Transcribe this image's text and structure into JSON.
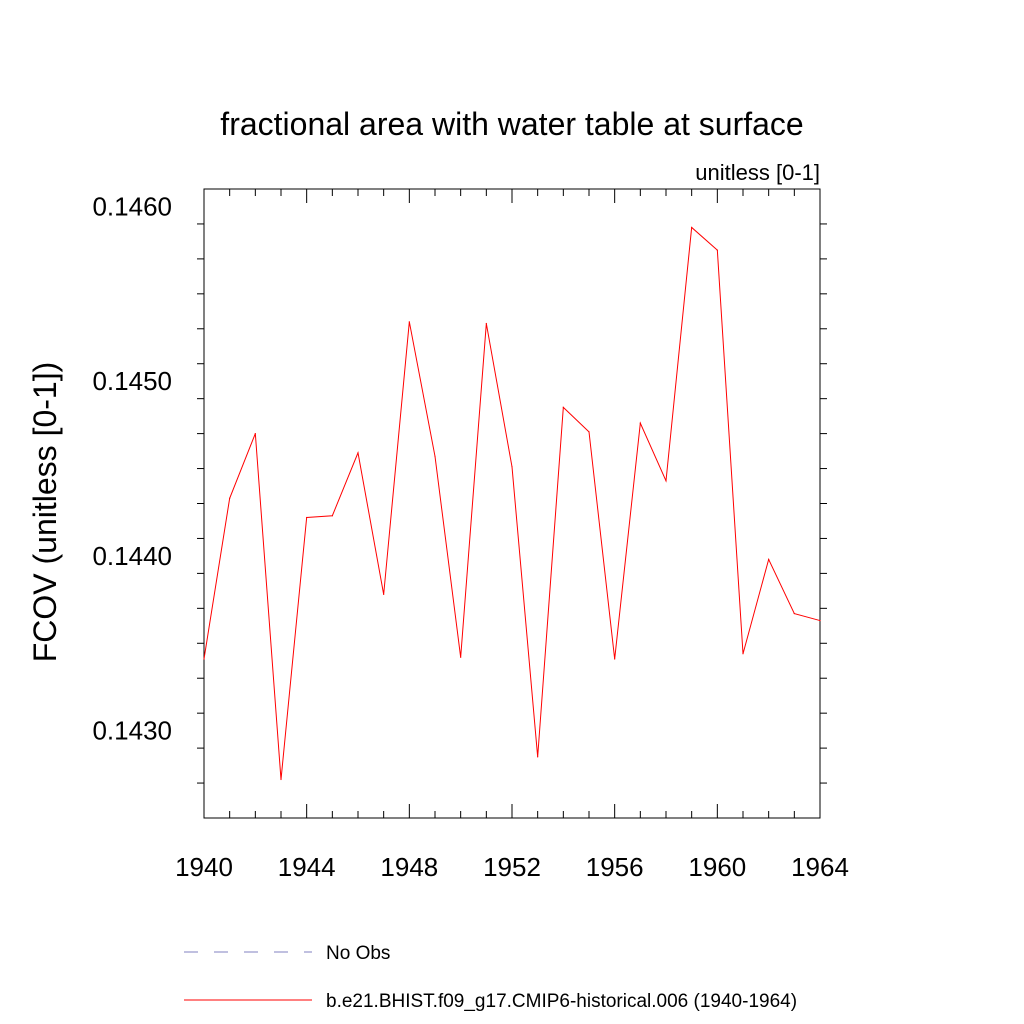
{
  "chart_data": {
    "type": "line",
    "title": "fractional area with water table at surface",
    "subtitle": "unitless [0-1]",
    "ylabel": "FCOV  (unitless [0-1])",
    "xlabel": "",
    "xlim": [
      1940,
      1964
    ],
    "ylim": [
      0.1425,
      0.1461
    ],
    "xticks": [
      1940,
      1944,
      1948,
      1952,
      1956,
      1960,
      1964
    ],
    "xtick_labels": [
      "1940",
      "1944",
      "1948",
      "1952",
      "1956",
      "1960",
      "1964"
    ],
    "yticks": [
      0.143,
      0.144,
      0.145,
      0.146
    ],
    "ytick_labels": [
      "0.1430",
      "0.1440",
      "0.1450",
      "0.1460"
    ],
    "grid": false,
    "legend_position": "bottom",
    "series": [
      {
        "name": "b.e21.BHIST.f09_g17.CMIP6-historical.006 (1940-1964)",
        "color": "#ff0000",
        "style": "solid",
        "x": [
          1940,
          1941,
          1942,
          1943,
          1944,
          1945,
          1946,
          1947,
          1948,
          1949,
          1950,
          1951,
          1952,
          1953,
          1954,
          1955,
          1956,
          1957,
          1958,
          1959,
          1960,
          1961,
          1962,
          1963,
          1964
        ],
        "values": [
          0.14341,
          0.14433,
          0.1447,
          0.14272,
          0.14422,
          0.14423,
          0.14459,
          0.14378,
          0.14534,
          0.14457,
          0.14342,
          0.14533,
          0.14451,
          0.14285,
          0.14485,
          0.14471,
          0.14341,
          0.14476,
          0.14443,
          0.14588,
          0.14575,
          0.14344,
          0.14398,
          0.14367,
          0.14363
        ]
      }
    ],
    "legend": [
      {
        "label": "No Obs",
        "color": "#8080c0",
        "style": "dashed"
      },
      {
        "label": "b.e21.BHIST.f09_g17.CMIP6-historical.006 (1940-1964)",
        "color": "#ff0000",
        "style": "solid"
      }
    ]
  }
}
